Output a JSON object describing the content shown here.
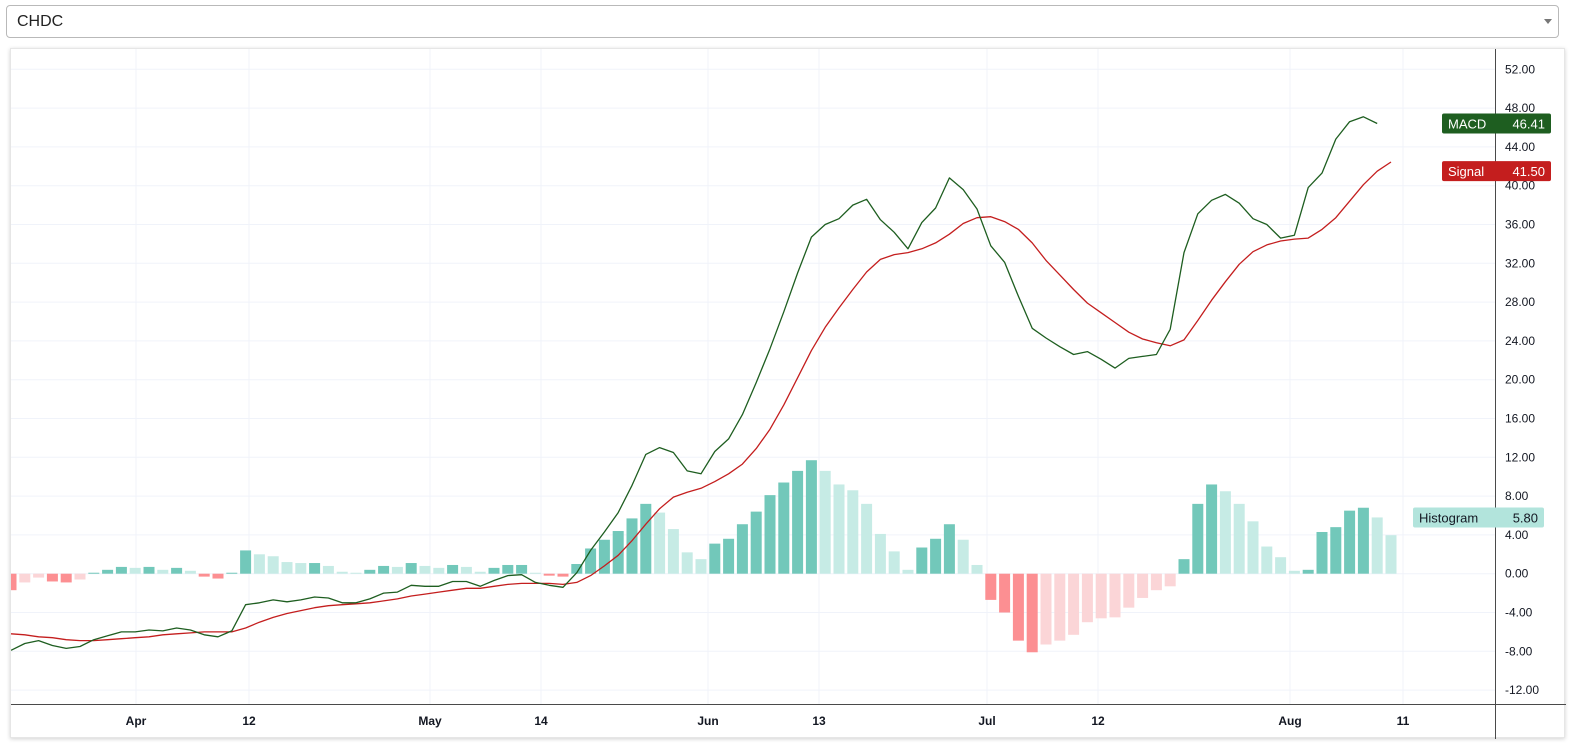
{
  "selector": {
    "value": "CHDC"
  },
  "colors": {
    "macd": "#1e5e20",
    "signal": "#c41e1e",
    "hist_pos_strong": "#72c8ba",
    "hist_pos_weak": "#c6ebe5",
    "hist_neg_strong": "#fc8f92",
    "hist_neg_weak": "#fbd5d7",
    "grid": "#f0f3fa",
    "axis": "#4a4a4a"
  },
  "chart_data": {
    "type": "line",
    "grid": true,
    "ylim": [
      -14,
      54
    ],
    "y_ticks": [
      "52.00",
      "48.00",
      "44.00",
      "40.00",
      "36.00",
      "32.00",
      "28.00",
      "24.00",
      "20.00",
      "16.00",
      "12.00",
      "8.00",
      "4.00",
      "0.00",
      "-4.00",
      "-8.00",
      "-12.00"
    ],
    "x_ticks": [
      "Apr",
      "12",
      "May",
      "14",
      "Jun",
      "13",
      "Jul",
      "12",
      "Aug",
      "11"
    ],
    "series": [
      {
        "name": "MACD",
        "values": [
          -7.9,
          -7.2,
          -6.9,
          -7.4,
          -7.7,
          -7.5,
          -6.8,
          -6.4,
          -6.0,
          -6.0,
          -5.8,
          -5.9,
          -5.6,
          -5.8,
          -6.3,
          -6.5,
          -5.9,
          -3.2,
          -3.0,
          -2.7,
          -2.9,
          -2.7,
          -2.4,
          -2.5,
          -3.0,
          -3.0,
          -2.6,
          -2.0,
          -1.9,
          -1.2,
          -1.3,
          -1.3,
          -0.8,
          -0.8,
          -1.3,
          -0.7,
          -0.2,
          -0.1,
          -0.9,
          -1.2,
          -1.4,
          0.1,
          2.4,
          4.3,
          6.3,
          9.1,
          12.3,
          13.0,
          12.5,
          10.6,
          10.3,
          12.6,
          13.9,
          16.4,
          19.7,
          23.2,
          27.0,
          31.0,
          34.7,
          36.0,
          36.6,
          38.0,
          38.6,
          36.5,
          35.2,
          33.5,
          36.2,
          37.7,
          40.8,
          39.6,
          37.6,
          33.8,
          32.1,
          28.6,
          25.3,
          24.3,
          23.4,
          22.6,
          22.9,
          22.1,
          21.2,
          22.2,
          22.4,
          22.6,
          25.2,
          33.1,
          37.1,
          38.5,
          39.1,
          38.2,
          36.6,
          36.0,
          34.6,
          34.9,
          39.8,
          41.3,
          44.8,
          46.6,
          47.1,
          46.41
        ]
      },
      {
        "name": "Signal",
        "values": [
          -6.2,
          -6.3,
          -6.5,
          -6.6,
          -6.8,
          -6.9,
          -6.9,
          -6.8,
          -6.7,
          -6.6,
          -6.5,
          -6.3,
          -6.2,
          -6.1,
          -6.0,
          -6.0,
          -6.0,
          -5.6,
          -5.0,
          -4.5,
          -4.1,
          -3.8,
          -3.5,
          -3.3,
          -3.2,
          -3.1,
          -3.0,
          -2.8,
          -2.6,
          -2.3,
          -2.1,
          -1.9,
          -1.7,
          -1.5,
          -1.5,
          -1.3,
          -1.1,
          -1.0,
          -1.0,
          -1.0,
          -1.1,
          -0.9,
          -0.2,
          0.8,
          1.9,
          3.4,
          5.1,
          6.7,
          7.9,
          8.4,
          8.8,
          9.5,
          10.3,
          11.3,
          12.9,
          14.9,
          17.4,
          20.2,
          23.0,
          25.4,
          27.4,
          29.3,
          31.1,
          32.4,
          32.9,
          33.1,
          33.5,
          34.1,
          35.0,
          36.1,
          36.7,
          36.8,
          36.3,
          35.5,
          34.1,
          32.3,
          30.8,
          29.3,
          27.9,
          26.9,
          25.9,
          24.9,
          24.2,
          23.8,
          23.5,
          24.1,
          26.1,
          28.2,
          30.1,
          31.9,
          33.2,
          33.9,
          34.3,
          34.5,
          34.6,
          35.5,
          36.7,
          38.4,
          40.1,
          41.5,
          42.44
        ]
      },
      {
        "name": "Histogram",
        "values": [
          -1.7,
          -0.9,
          -0.4,
          -0.8,
          -0.9,
          -0.6,
          0.1,
          0.4,
          0.7,
          0.6,
          0.7,
          0.4,
          0.6,
          0.3,
          -0.3,
          -0.5,
          0.1,
          2.4,
          2.0,
          1.8,
          1.2,
          1.1,
          1.1,
          0.8,
          0.2,
          0.1,
          0.4,
          0.8,
          0.7,
          1.1,
          0.8,
          0.6,
          0.9,
          0.7,
          0.2,
          0.6,
          0.9,
          0.9,
          0.1,
          -0.2,
          -0.3,
          1.0,
          2.6,
          3.5,
          4.4,
          5.7,
          7.2,
          6.3,
          4.6,
          2.2,
          1.5,
          3.1,
          3.6,
          5.1,
          6.4,
          8.1,
          9.4,
          10.6,
          11.7,
          10.6,
          9.2,
          8.6,
          7.2,
          4.1,
          2.3,
          0.4,
          2.7,
          3.6,
          5.1,
          3.5,
          0.9,
          -2.7,
          -4.0,
          -6.9,
          -8.1,
          -7.3,
          -6.9,
          -6.3,
          -5.0,
          -4.6,
          -4.5,
          -3.5,
          -2.5,
          -1.7,
          -1.3,
          1.5,
          7.2,
          9.2,
          8.5,
          7.2,
          5.4,
          2.8,
          1.7,
          0.3,
          0.4,
          4.3,
          4.8,
          6.5,
          6.8,
          5.8,
          3.97
        ]
      }
    ]
  }
}
